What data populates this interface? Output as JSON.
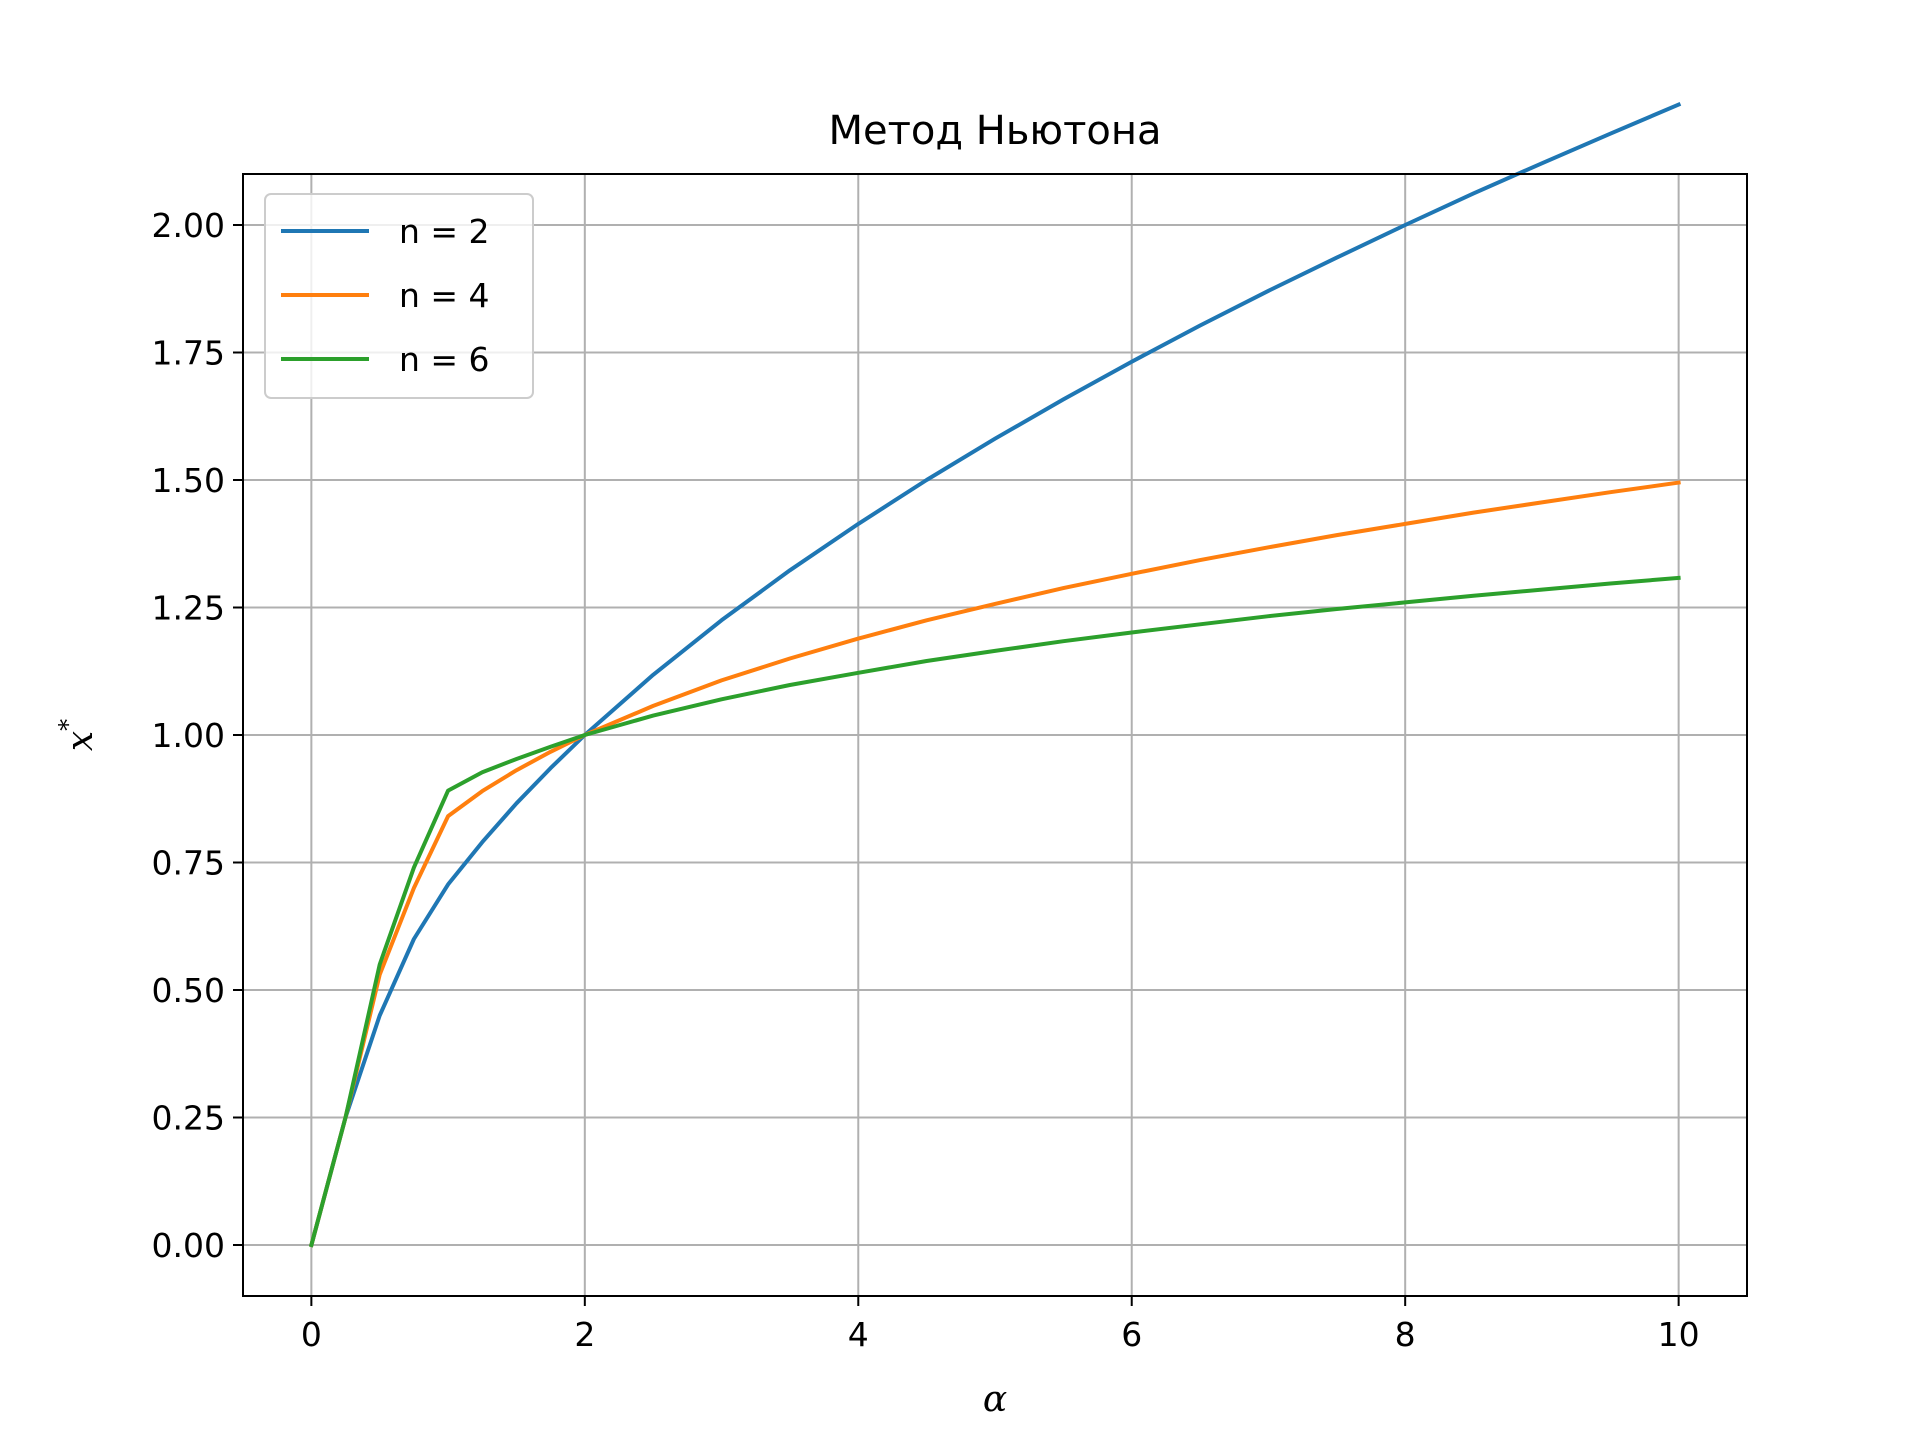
{
  "chart_data": {
    "type": "line",
    "title": "Метод Ньютона",
    "xlabel": "α",
    "ylabel": "x",
    "ylabel_superscript": "*",
    "xlim": [
      -0.5,
      10.5
    ],
    "ylim": [
      -0.1,
      2.1
    ],
    "xticks": [
      0,
      2,
      4,
      6,
      8,
      10
    ],
    "xtick_labels": [
      "0",
      "2",
      "4",
      "6",
      "8",
      "10"
    ],
    "yticks": [
      0,
      0.25,
      0.5,
      0.75,
      1.0,
      1.25,
      1.5,
      1.75,
      2.0
    ],
    "ytick_labels": [
      "0.00",
      "0.25",
      "0.50",
      "0.75",
      "1.00",
      "1.25",
      "1.50",
      "1.75",
      "2.00"
    ],
    "grid": true,
    "legend_position": "top-left",
    "x": [
      0,
      0.25,
      0.5,
      0.75,
      1.0,
      1.25,
      1.5,
      1.75,
      2.0,
      2.5,
      3.0,
      3.5,
      4.0,
      4.5,
      5.0,
      5.5,
      6.0,
      6.5,
      7.0,
      7.5,
      8.0,
      8.5,
      9.0,
      9.5,
      10.0
    ],
    "series": [
      {
        "name": "n = 2",
        "color": "#1f77b4",
        "values": [
          0,
          0.25,
          0.45,
          0.6,
          0.707,
          0.79,
          0.866,
          0.935,
          1.0,
          1.118,
          1.225,
          1.323,
          1.414,
          1.5,
          1.581,
          1.658,
          1.732,
          1.803,
          1.871,
          1.936,
          2.0,
          2.062,
          2.121,
          2.179,
          2.236
        ]
      },
      {
        "name": "n = 4",
        "color": "#ff7f0e",
        "values": [
          0,
          0.25,
          0.53,
          0.7,
          0.841,
          0.89,
          0.931,
          0.967,
          1.0,
          1.057,
          1.107,
          1.15,
          1.189,
          1.225,
          1.257,
          1.288,
          1.316,
          1.343,
          1.368,
          1.392,
          1.414,
          1.436,
          1.456,
          1.476,
          1.495
        ]
      },
      {
        "name": "n = 6",
        "color": "#2ca02c",
        "values": [
          0,
          0.25,
          0.55,
          0.74,
          0.891,
          0.927,
          0.953,
          0.977,
          1.0,
          1.038,
          1.07,
          1.098,
          1.122,
          1.145,
          1.165,
          1.184,
          1.201,
          1.217,
          1.233,
          1.247,
          1.26,
          1.273,
          1.285,
          1.297,
          1.308
        ]
      }
    ]
  }
}
